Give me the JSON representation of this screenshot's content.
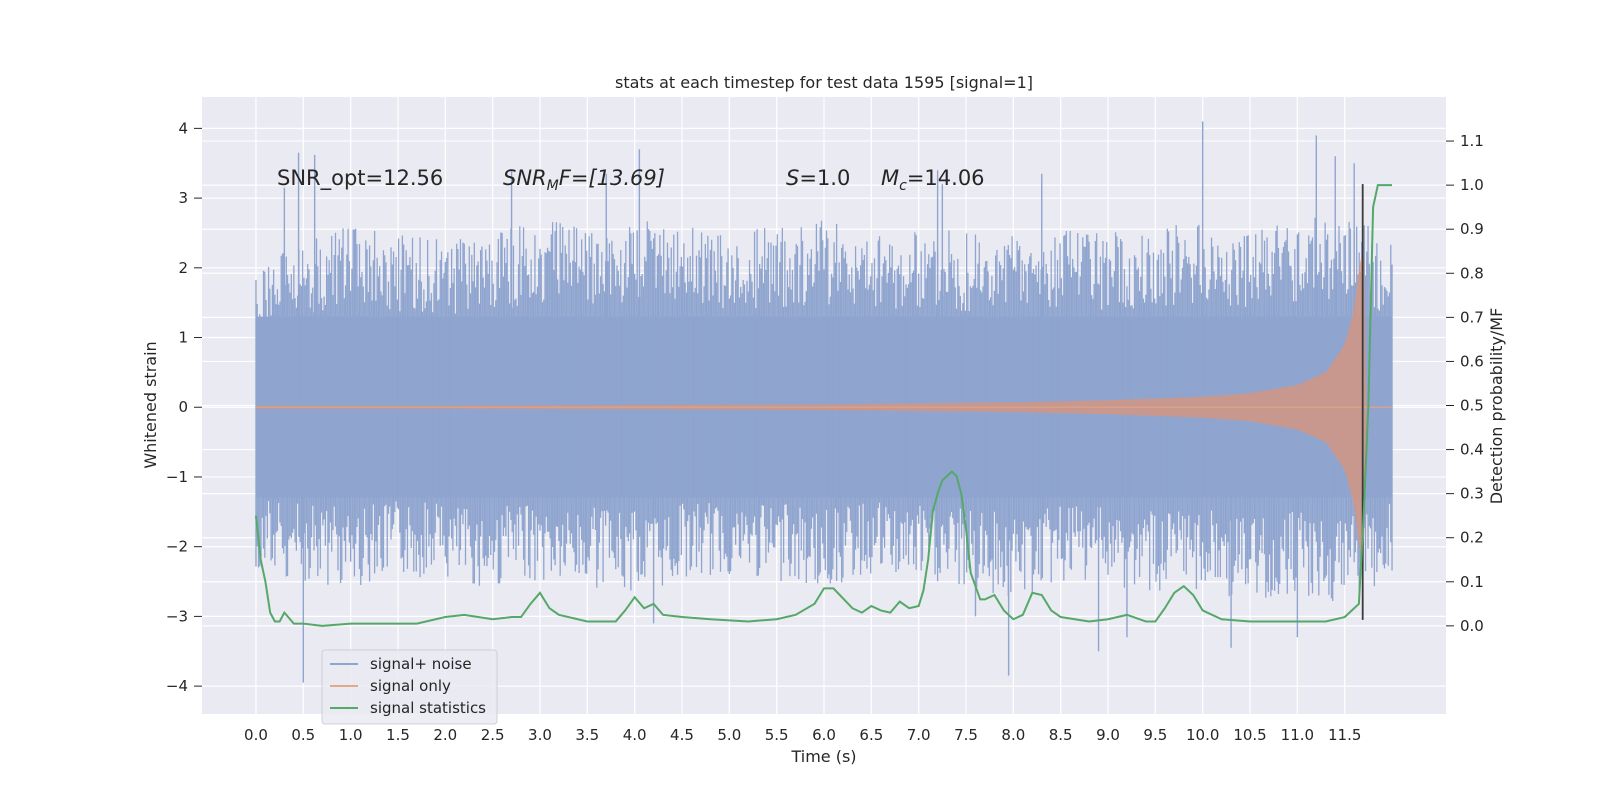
{
  "chart_data": {
    "type": "line",
    "title": "stats at each timestep for test data 1595 [signal=1]",
    "xlabel": "Time (s)",
    "ylabel": "Whitened strain",
    "ylabel_right": "Detection probability/MF",
    "xlim": [
      -0.57,
      12.57
    ],
    "ylim": [
      -4.4,
      4.45
    ],
    "ylim_right": [
      -0.2,
      1.2
    ],
    "grid": true,
    "x_ticks": [
      0.0,
      0.5,
      1.0,
      1.5,
      2.0,
      2.5,
      3.0,
      3.5,
      4.0,
      4.5,
      5.0,
      5.5,
      6.0,
      6.5,
      7.0,
      7.5,
      8.0,
      8.5,
      9.0,
      9.5,
      10.0,
      10.5,
      11.0,
      11.5
    ],
    "x_tick_labels": [
      "0.0",
      "0.5",
      "1.0",
      "1.5",
      "2.0",
      "2.5",
      "3.0",
      "3.5",
      "4.0",
      "4.5",
      "5.0",
      "5.5",
      "6.0",
      "6.5",
      "7.0",
      "7.5",
      "8.0",
      "8.5",
      "9.0",
      "9.5",
      "10.0",
      "10.5",
      "11.0",
      "11.5"
    ],
    "y_ticks": [
      -4,
      -3,
      -2,
      -1,
      0,
      1,
      2,
      3,
      4
    ],
    "y_tick_labels": [
      "−4",
      "−3",
      "−2",
      "−1",
      "0",
      "1",
      "2",
      "3",
      "4"
    ],
    "y_right_ticks": [
      0.0,
      0.1,
      0.2,
      0.3,
      0.4,
      0.5,
      0.6,
      0.7,
      0.8,
      0.9,
      1.0,
      1.1
    ],
    "y_right_tick_labels": [
      "0.0",
      "0.1",
      "0.2",
      "0.3",
      "0.4",
      "0.5",
      "0.6",
      "0.7",
      "0.8",
      "0.9",
      "1.0",
      "1.1"
    ],
    "annotations": {
      "snr_opt": "SNR_opt=12.56",
      "snr_mf_base": "SNR",
      "snr_mf_sub": "M",
      "snr_mf_rest": "F=[13.69]",
      "s_var": "S",
      "s_rest": "=1.0",
      "mc_var": "M",
      "mc_sub": "c",
      "mc_rest": "=14.06"
    },
    "legend_position": "lower left",
    "series": [
      {
        "name": "signal+ noise",
        "color": "#8fa5cf",
        "x_range": [
          0.0,
          12.0
        ],
        "envelope_upper": [
          [
            0.0,
            2.0
          ],
          [
            0.5,
            2.4
          ],
          [
            1.0,
            2.6
          ],
          [
            1.5,
            2.5
          ],
          [
            2.0,
            2.4
          ],
          [
            2.5,
            2.5
          ],
          [
            3.0,
            2.7
          ],
          [
            3.5,
            2.6
          ],
          [
            4.0,
            2.7
          ],
          [
            4.5,
            2.6
          ],
          [
            5.0,
            2.5
          ],
          [
            5.5,
            2.6
          ],
          [
            6.0,
            2.7
          ],
          [
            6.5,
            2.5
          ],
          [
            7.0,
            2.6
          ],
          [
            7.5,
            2.5
          ],
          [
            8.0,
            2.5
          ],
          [
            8.5,
            2.6
          ],
          [
            9.0,
            2.5
          ],
          [
            9.5,
            2.6
          ],
          [
            10.0,
            2.7
          ],
          [
            10.5,
            2.6
          ],
          [
            11.0,
            2.7
          ],
          [
            11.5,
            2.8
          ],
          [
            12.0,
            2.4
          ]
        ],
        "envelope_lower": [
          [
            0.0,
            -2.3
          ],
          [
            0.5,
            -2.5
          ],
          [
            1.0,
            -2.6
          ],
          [
            1.5,
            -2.4
          ],
          [
            2.0,
            -2.5
          ],
          [
            2.5,
            -2.6
          ],
          [
            3.0,
            -2.5
          ],
          [
            3.5,
            -2.6
          ],
          [
            4.0,
            -2.7
          ],
          [
            4.5,
            -2.5
          ],
          [
            5.0,
            -2.4
          ],
          [
            5.5,
            -2.5
          ],
          [
            6.0,
            -2.6
          ],
          [
            6.5,
            -2.4
          ],
          [
            7.0,
            -2.5
          ],
          [
            7.5,
            -2.6
          ],
          [
            8.0,
            -2.8
          ],
          [
            8.5,
            -2.5
          ],
          [
            9.0,
            -2.6
          ],
          [
            9.5,
            -2.7
          ],
          [
            10.0,
            -2.6
          ],
          [
            10.5,
            -2.8
          ],
          [
            11.0,
            -2.7
          ],
          [
            11.5,
            -2.9
          ],
          [
            12.0,
            -2.4
          ]
        ],
        "spikes": [
          [
            0.3,
            3.15
          ],
          [
            0.45,
            3.65
          ],
          [
            0.5,
            -3.95
          ],
          [
            0.62,
            3.62
          ],
          [
            2.7,
            3.4
          ],
          [
            3.7,
            3.35
          ],
          [
            4.05,
            3.7
          ],
          [
            4.2,
            -3.1
          ],
          [
            7.2,
            3.4
          ],
          [
            7.25,
            3.2
          ],
          [
            7.6,
            -3.0
          ],
          [
            7.95,
            -3.85
          ],
          [
            8.3,
            3.35
          ],
          [
            8.9,
            -3.5
          ],
          [
            9.2,
            -3.3
          ],
          [
            10.0,
            4.1
          ],
          [
            10.3,
            -3.45
          ],
          [
            11.0,
            -3.3
          ],
          [
            11.2,
            3.9
          ],
          [
            11.4,
            3.6
          ],
          [
            11.6,
            3.5
          ]
        ]
      },
      {
        "name": "signal only",
        "color": "#dd8452",
        "x_range": [
          0.0,
          12.0
        ],
        "amplitude": [
          [
            0.0,
            0.02
          ],
          [
            2.0,
            0.02
          ],
          [
            4.0,
            0.03
          ],
          [
            6.0,
            0.04
          ],
          [
            8.0,
            0.07
          ],
          [
            9.0,
            0.1
          ],
          [
            10.0,
            0.15
          ],
          [
            10.5,
            0.2
          ],
          [
            11.0,
            0.32
          ],
          [
            11.3,
            0.5
          ],
          [
            11.5,
            0.9
          ],
          [
            11.6,
            1.4
          ],
          [
            11.65,
            2.0
          ],
          [
            11.7,
            2.3
          ],
          [
            11.72,
            0.0
          ],
          [
            12.0,
            0.0
          ]
        ]
      },
      {
        "name": "signal statistics",
        "color": "#55a868",
        "axis": "right",
        "x": [
          0.0,
          0.05,
          0.1,
          0.15,
          0.2,
          0.25,
          0.3,
          0.4,
          0.5,
          0.7,
          1.0,
          1.2,
          1.5,
          1.7,
          2.0,
          2.2,
          2.5,
          2.7,
          2.8,
          2.9,
          3.0,
          3.1,
          3.2,
          3.5,
          3.8,
          3.9,
          4.0,
          4.1,
          4.2,
          4.3,
          4.5,
          4.8,
          5.2,
          5.5,
          5.7,
          5.9,
          6.0,
          6.1,
          6.3,
          6.4,
          6.5,
          6.6,
          6.7,
          6.8,
          6.9,
          7.0,
          7.05,
          7.1,
          7.15,
          7.2,
          7.25,
          7.3,
          7.35,
          7.4,
          7.45,
          7.5,
          7.55,
          7.6,
          7.65,
          7.7,
          7.8,
          7.9,
          8.0,
          8.1,
          8.2,
          8.3,
          8.4,
          8.5,
          8.8,
          9.0,
          9.2,
          9.4,
          9.5,
          9.6,
          9.7,
          9.8,
          9.9,
          10.0,
          10.2,
          10.5,
          11.0,
          11.3,
          11.5,
          11.6,
          11.65,
          11.7,
          11.75,
          11.8,
          11.85,
          11.9,
          12.0
        ],
        "y": [
          0.25,
          0.15,
          0.1,
          0.03,
          0.01,
          0.01,
          0.03,
          0.005,
          0.005,
          0.0,
          0.005,
          0.005,
          0.005,
          0.005,
          0.02,
          0.025,
          0.015,
          0.02,
          0.02,
          0.05,
          0.075,
          0.04,
          0.025,
          0.01,
          0.01,
          0.035,
          0.065,
          0.04,
          0.05,
          0.025,
          0.02,
          0.015,
          0.01,
          0.015,
          0.025,
          0.05,
          0.085,
          0.085,
          0.04,
          0.03,
          0.045,
          0.035,
          0.03,
          0.055,
          0.04,
          0.045,
          0.08,
          0.15,
          0.26,
          0.3,
          0.33,
          0.34,
          0.35,
          0.34,
          0.3,
          0.22,
          0.12,
          0.09,
          0.06,
          0.06,
          0.07,
          0.035,
          0.015,
          0.025,
          0.075,
          0.07,
          0.035,
          0.02,
          0.01,
          0.015,
          0.025,
          0.01,
          0.01,
          0.04,
          0.075,
          0.09,
          0.07,
          0.035,
          0.015,
          0.01,
          0.01,
          0.01,
          0.02,
          0.04,
          0.05,
          0.25,
          0.5,
          0.95,
          1.0,
          1.0,
          1.0
        ]
      }
    ],
    "vertical_marker": {
      "x": 11.69,
      "y_range": [
        -3.05,
        3.2
      ],
      "color": "#3a3a3a"
    },
    "noise_seed": 1595
  }
}
